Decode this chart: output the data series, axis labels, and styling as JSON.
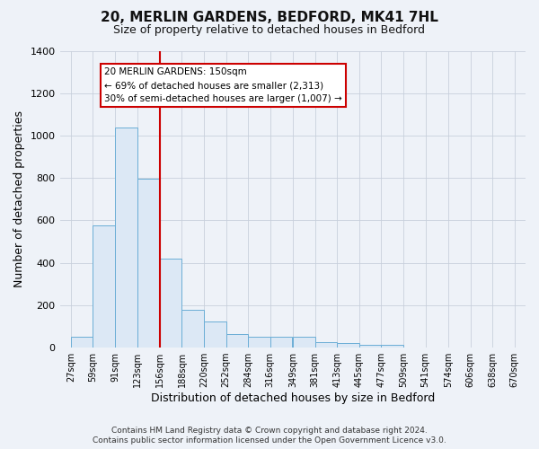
{
  "title": "20, MERLIN GARDENS, BEDFORD, MK41 7HL",
  "subtitle": "Size of property relative to detached houses in Bedford",
  "xlabel": "Distribution of detached houses by size in Bedford",
  "ylabel": "Number of detached properties",
  "bar_color": "#dce8f5",
  "bar_edge_color": "#6baed6",
  "bar_left_edges": [
    27,
    59,
    91,
    123,
    156,
    188,
    220,
    252,
    284,
    316,
    349,
    381,
    413,
    445,
    477,
    509,
    541,
    574,
    606,
    638
  ],
  "bar_heights": [
    50,
    575,
    1040,
    795,
    420,
    180,
    125,
    62,
    50,
    50,
    50,
    25,
    22,
    15,
    12,
    0,
    0,
    0,
    0,
    0
  ],
  "bin_width": 32,
  "tick_labels": [
    "27sqm",
    "59sqm",
    "91sqm",
    "123sqm",
    "156sqm",
    "188sqm",
    "220sqm",
    "252sqm",
    "284sqm",
    "316sqm",
    "349sqm",
    "381sqm",
    "413sqm",
    "445sqm",
    "477sqm",
    "509sqm",
    "541sqm",
    "574sqm",
    "606sqm",
    "638sqm",
    "670sqm"
  ],
  "tick_positions": [
    27,
    59,
    91,
    123,
    156,
    188,
    220,
    252,
    284,
    316,
    349,
    381,
    413,
    445,
    477,
    509,
    541,
    574,
    606,
    638,
    670
  ],
  "ylim": [
    0,
    1400
  ],
  "xlim": [
    11,
    686
  ],
  "yticks": [
    0,
    200,
    400,
    600,
    800,
    1000,
    1200,
    1400
  ],
  "vline_x": 156,
  "vline_color": "#cc0000",
  "annotation_title": "20 MERLIN GARDENS: 150sqm",
  "annotation_line1": "← 69% of detached houses are smaller (2,313)",
  "annotation_line2": "30% of semi-detached houses are larger (1,007) →",
  "annotation_box_facecolor": "#ffffff",
  "annotation_box_edgecolor": "#cc0000",
  "footer_line1": "Contains HM Land Registry data © Crown copyright and database right 2024.",
  "footer_line2": "Contains public sector information licensed under the Open Government Licence v3.0.",
  "fig_facecolor": "#eef2f8",
  "plot_facecolor": "#eef2f8",
  "grid_color": "#c8d0dc"
}
